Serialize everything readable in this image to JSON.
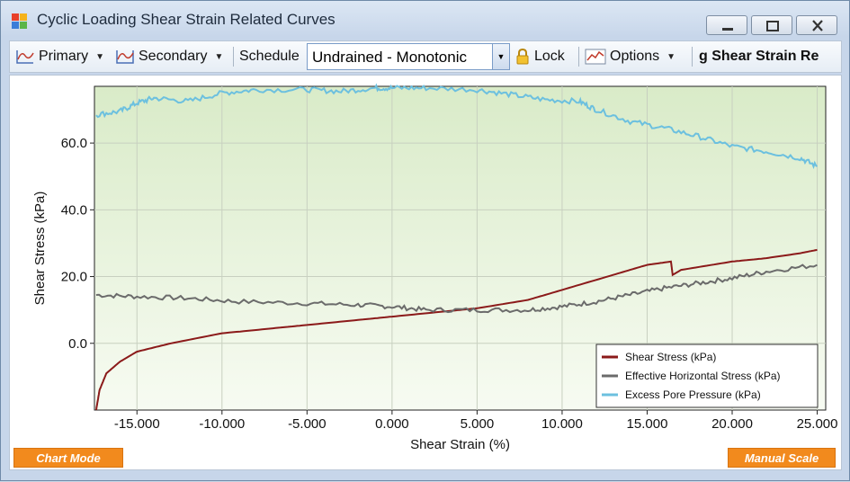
{
  "window": {
    "title": "Cyclic Loading Shear Strain Related Curves"
  },
  "toolbar": {
    "primary_label": "Primary",
    "secondary_label": "Secondary",
    "schedule_label": "Schedule",
    "schedule_value": "Undrained - Monotonic",
    "lock_label": "Lock",
    "options_label": "Options",
    "chart_title_fragment": "g Shear Strain Re"
  },
  "buttons": {
    "chart_mode": "Chart Mode",
    "manual_scale": "Manual Scale"
  },
  "colors": {
    "shear_stress": "#8b1a1a",
    "effective_horizontal_stress": "#6b6b6b",
    "excess_pore_pressure": "#6cc0df",
    "button_orange": "#f28a1d",
    "plot_top": "#d9ebc8",
    "plot_bottom": "#f7fbf2"
  },
  "chart_data": {
    "type": "line",
    "xlabel": "Shear Strain (%)",
    "ylabel": "Shear Stress (kPa)",
    "xlim": [
      -17.5,
      25.5
    ],
    "ylim": [
      -20,
      77
    ],
    "xticks": [
      -15,
      -10,
      -5,
      0,
      5,
      10,
      15,
      20,
      25
    ],
    "xtick_labels": [
      "-15.000",
      "-10.000",
      "-5.000",
      "0.000",
      "5.000",
      "10.000",
      "15.000",
      "20.000",
      "25.000"
    ],
    "yticks": [
      0,
      20,
      40,
      60
    ],
    "ytick_labels": [
      "0.0",
      "20.0",
      "40.0",
      "60.0"
    ],
    "grid": true,
    "legend_position": "bottom-right",
    "series": [
      {
        "name": "Shear Stress (kPa)",
        "color": "#8b1a1a",
        "x": [
          -17.4,
          -17.2,
          -16.8,
          -16.0,
          -15.0,
          -13.0,
          -10.0,
          -7.0,
          -5.0,
          -2.0,
          0.0,
          3.0,
          5.0,
          8.0,
          10.0,
          13.0,
          15.0,
          16.4,
          16.5,
          17.0,
          20.0,
          22.0,
          24.0,
          25.0
        ],
        "y": [
          -20.0,
          -14.0,
          -9.0,
          -5.5,
          -2.5,
          0.0,
          3.0,
          4.5,
          5.5,
          7.0,
          8.0,
          9.5,
          10.5,
          13.0,
          16.0,
          20.5,
          23.5,
          24.5,
          20.5,
          22.0,
          24.5,
          25.5,
          27.0,
          28.0
        ]
      },
      {
        "name": "Effective Horizontal Stress (kPa)",
        "color": "#6b6b6b",
        "x": [
          -17.4,
          -15.0,
          -12.0,
          -9.0,
          -5.0,
          -2.0,
          0.0,
          2.0,
          5.0,
          8.0,
          10.0,
          12.0,
          14.0,
          16.0,
          18.0,
          20.0,
          22.0,
          25.0
        ],
        "y": [
          14.5,
          14.0,
          13.5,
          12.5,
          12.0,
          11.5,
          11.0,
          10.0,
          10.0,
          10.0,
          11.0,
          12.5,
          14.5,
          16.5,
          18.0,
          19.5,
          21.5,
          23.5
        ]
      },
      {
        "name": "Excess Pore Pressure (kPa)",
        "color": "#6cc0df",
        "x": [
          -17.4,
          -16.0,
          -15.0,
          -14.0,
          -12.0,
          -10.0,
          -8.0,
          -5.0,
          -3.0,
          -1.0,
          0.0,
          2.0,
          5.0,
          7.0,
          9.0,
          11.0,
          12.0,
          14.0,
          16.0,
          18.0,
          20.0,
          22.0,
          24.0,
          25.0
        ],
        "y": [
          68.5,
          69.5,
          72.0,
          73.5,
          72.5,
          75.0,
          76.0,
          76.0,
          75.5,
          76.5,
          76.5,
          76.5,
          76.0,
          74.5,
          73.0,
          72.5,
          70.0,
          66.5,
          64.5,
          62.0,
          59.0,
          57.5,
          55.5,
          53.0
        ]
      }
    ]
  }
}
